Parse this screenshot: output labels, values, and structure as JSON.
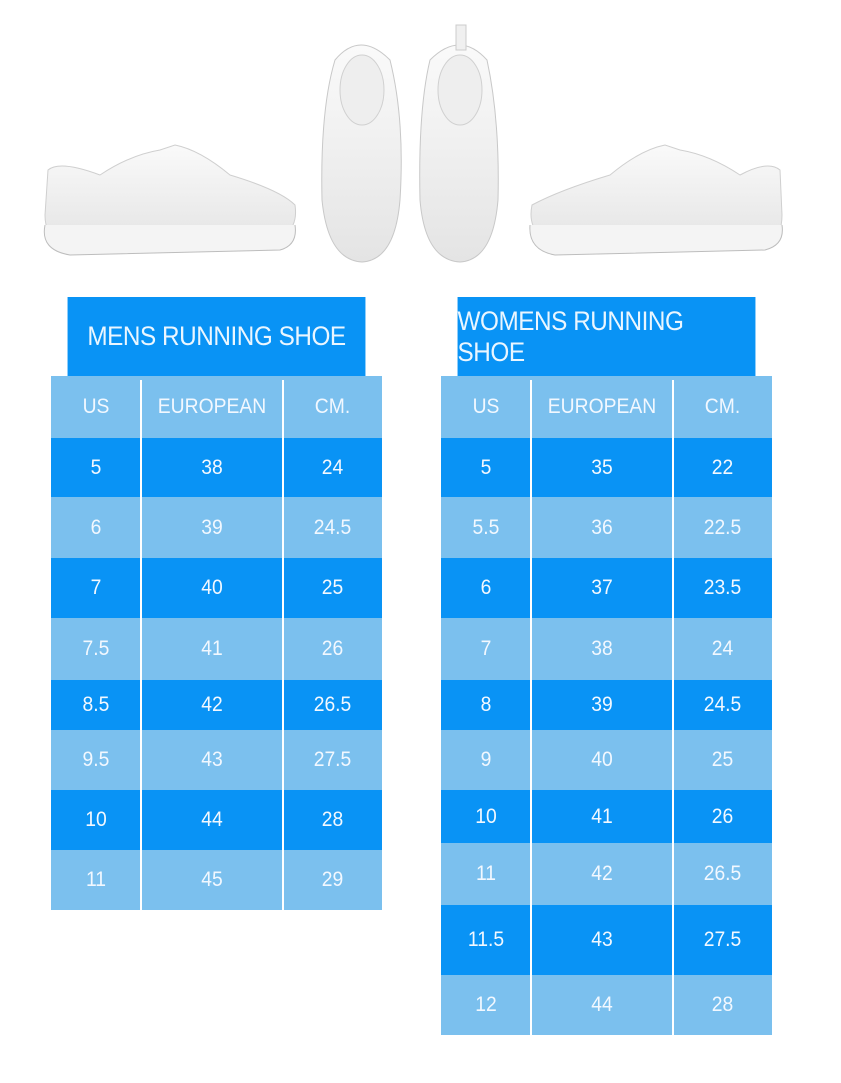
{
  "colors": {
    "dark": "#0993f5",
    "light": "#7bc0ee",
    "text": "#f2f8ff"
  },
  "mens": {
    "title": "MENS RUNNING SHOE",
    "columns": [
      "US",
      "EUROPEAN",
      "CM."
    ],
    "rows": [
      [
        "5",
        "38",
        "24"
      ],
      [
        "6",
        "39",
        "24.5"
      ],
      [
        "7",
        "40",
        "25"
      ],
      [
        "7.5",
        "41",
        "26"
      ],
      [
        "8.5",
        "42",
        "26.5"
      ],
      [
        "9.5",
        "43",
        "27.5"
      ],
      [
        "10",
        "44",
        "28"
      ],
      [
        "11",
        "45",
        "29"
      ]
    ]
  },
  "womens": {
    "title": "WOMENS RUNNING SHOE",
    "columns": [
      "US",
      "EUROPEAN",
      "CM."
    ],
    "rows": [
      [
        "5",
        "35",
        "22"
      ],
      [
        "5.5",
        "36",
        "22.5"
      ],
      [
        "6",
        "37",
        "23.5"
      ],
      [
        "7",
        "38",
        "24"
      ],
      [
        "8",
        "39",
        "24.5"
      ],
      [
        "9",
        "40",
        "25"
      ],
      [
        "10",
        "41",
        "26"
      ],
      [
        "11",
        "42",
        "26.5"
      ],
      [
        "11.5",
        "43",
        "27.5"
      ],
      [
        "12",
        "44",
        "28"
      ]
    ]
  }
}
